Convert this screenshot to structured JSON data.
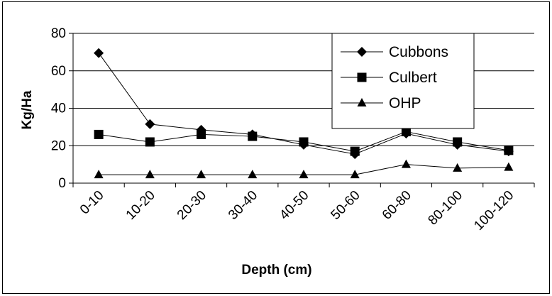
{
  "chart_data": {
    "type": "line",
    "title": "",
    "xlabel": "Depth (cm)",
    "ylabel": "Kg/Ha",
    "ylim": [
      0,
      80
    ],
    "yticks": [
      0,
      20,
      40,
      60,
      80
    ],
    "grid": "horizontal major gridlines",
    "legend_position": "top-right",
    "categories": [
      "0-10",
      "10-20",
      "20-30",
      "30-40",
      "40-50",
      "50-60",
      "60-80",
      "80-100",
      "100-120"
    ],
    "series": [
      {
        "name": "Cubbons",
        "marker": "diamond",
        "color": "#000000",
        "values": [
          69.5,
          31.5,
          28.5,
          26,
          20.5,
          15.5,
          26.5,
          20.5,
          17
        ]
      },
      {
        "name": "Culbert",
        "marker": "square",
        "color": "#000000",
        "values": [
          26,
          22,
          26,
          25,
          22,
          17,
          27.5,
          22,
          17.5
        ]
      },
      {
        "name": "OHP",
        "marker": "triangle",
        "color": "#000000",
        "values": [
          4.5,
          4.5,
          4.5,
          4.5,
          4.5,
          4.5,
          10,
          8,
          8.5
        ]
      }
    ]
  }
}
